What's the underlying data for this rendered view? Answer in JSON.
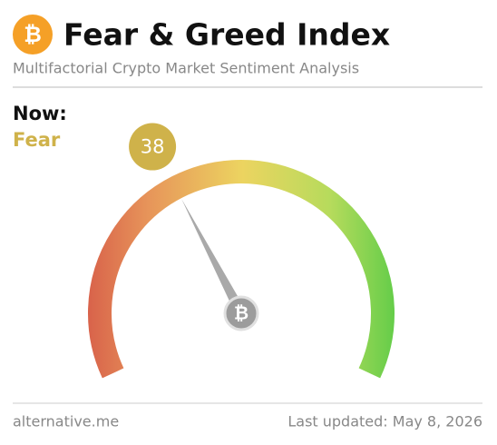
{
  "chart_data": {
    "type": "gauge",
    "title": "Fear & Greed Index",
    "subtitle": "Multifactorial Crypto Market Sentiment Analysis",
    "label": "Now:",
    "status": "Fear",
    "value": 38,
    "ylim": [
      0,
      100
    ],
    "color": "#cfb24a"
  },
  "footer": {
    "source": "alternative.me",
    "updated": "Last updated: May 8, 2026"
  }
}
